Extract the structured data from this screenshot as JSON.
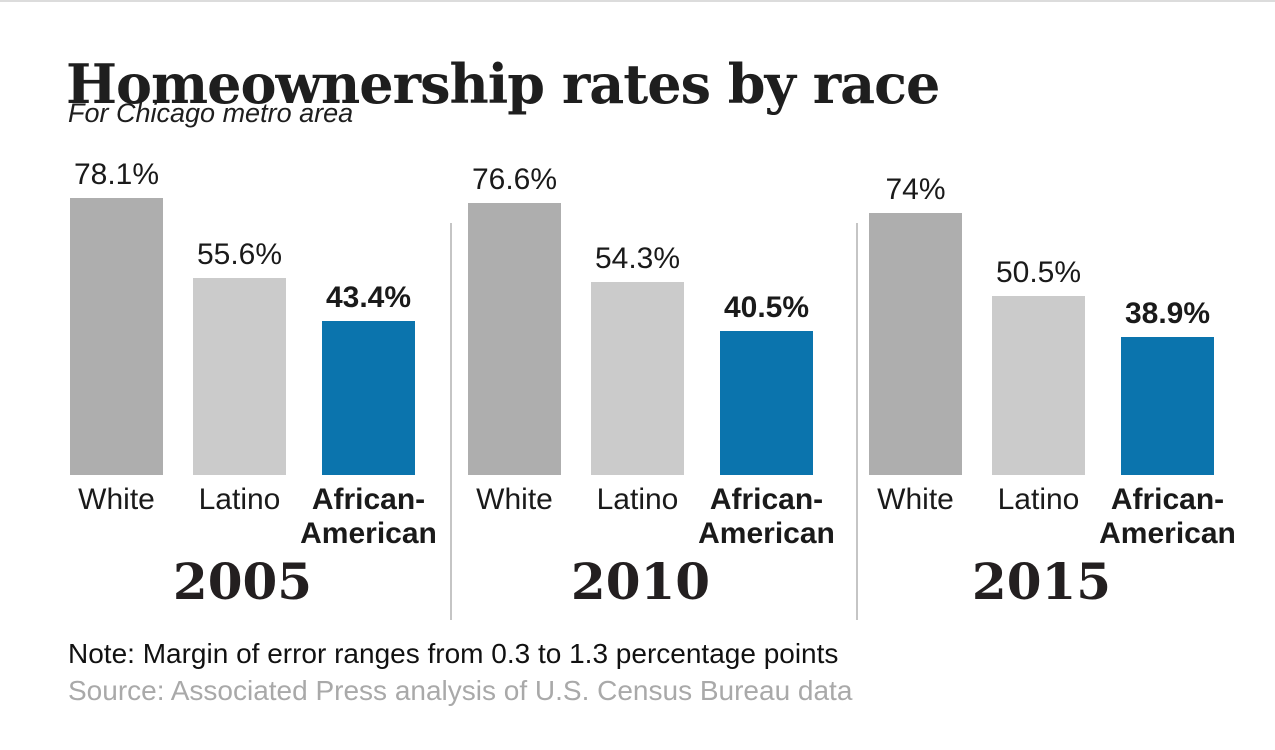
{
  "header": {
    "title": "Homeownership rates by race",
    "subtitle": "For Chicago metro area"
  },
  "footer": {
    "note": "Note: Margin of error ranges from 0.3 to 1.3 percentage points",
    "source": "Source: Associated Press analysis of U.S. Census Bureau data"
  },
  "colors": {
    "white_bar": "#aeaeae",
    "latino_bar": "#cbcbcb",
    "african_american_bar": "#0b74ad",
    "divider": "#c5c5c5",
    "note_text": "#111111",
    "source_text": "#a9a9a9",
    "title_text": "#1e1e1e"
  },
  "chart_data": {
    "type": "bar",
    "title": "Homeownership rates by race",
    "subtitle": "For Chicago metro area",
    "unit": "%",
    "categories": [
      "2005",
      "2010",
      "2015"
    ],
    "series": [
      {
        "name": "White",
        "label_lines": [
          "White"
        ],
        "color": "#aeaeae",
        "emphasis": false,
        "values": [
          78.1,
          76.6,
          74
        ]
      },
      {
        "name": "Latino",
        "label_lines": [
          "Latino"
        ],
        "color": "#cbcbcb",
        "emphasis": false,
        "values": [
          55.6,
          54.3,
          50.5
        ]
      },
      {
        "name": "African-American",
        "label_lines": [
          "African-",
          "American"
        ],
        "color": "#0b74ad",
        "emphasis": true,
        "values": [
          43.4,
          40.5,
          38.9
        ]
      }
    ],
    "value_labels": [
      "78.1%",
      "55.6%",
      "43.4%",
      "76.6%",
      "54.3%",
      "40.5%",
      "74%",
      "50.5%",
      "38.9%"
    ],
    "ylim": [
      0,
      90
    ],
    "grid": false,
    "legend": false,
    "group_dividers": true
  }
}
